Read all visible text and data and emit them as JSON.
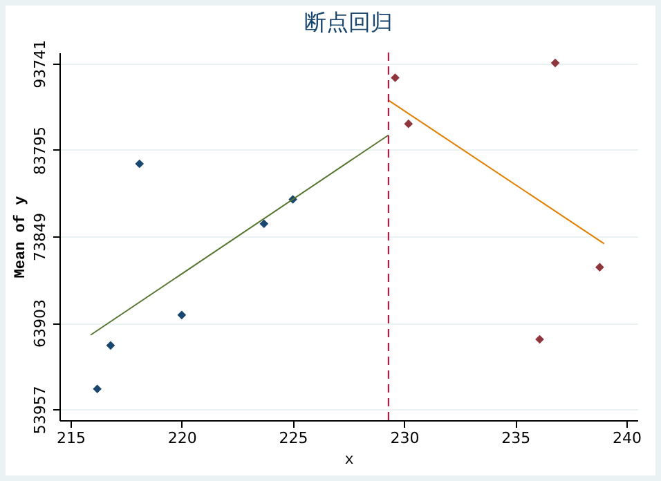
{
  "chart_data": {
    "type": "scatter",
    "title": "断点回归",
    "xlabel": "x",
    "ylabel": "Mean of y",
    "xlim": [
      214.5,
      240.5
    ],
    "xticks": [
      215,
      220,
      225,
      230,
      235,
      240
    ],
    "ylim": [
      52700,
      95000
    ],
    "yticks": [
      53957,
      63903,
      73849,
      83795,
      93741
    ],
    "grid": "y",
    "series": [
      {
        "marker": "diamond",
        "color": "#1a476f",
        "x": [
          216.2,
          216.8,
          218.1,
          220,
          223.7,
          225
        ],
        "values": [
          56300,
          61300,
          82200,
          64800,
          75300,
          78100
        ]
      },
      {
        "marker": "diamond",
        "color": "#90353b",
        "x": [
          229.6,
          230.2,
          236.1,
          236.8,
          238.8
        ],
        "values": [
          92100,
          86800,
          62000,
          93800,
          70300
        ]
      },
      {
        "type": "line",
        "marker": "none",
        "color": "#55752f",
        "x": [
          215.9,
          229.3
        ],
        "values": [
          62500,
          85500
        ]
      },
      {
        "type": "line",
        "marker": "none",
        "color": "#e37e00",
        "x": [
          229.3,
          239
        ],
        "values": [
          89500,
          73000
        ]
      }
    ],
    "ref_lines": [
      {
        "axis": "x",
        "value": 229.3,
        "color": "#c10534",
        "line_style": "dashed"
      }
    ]
  }
}
